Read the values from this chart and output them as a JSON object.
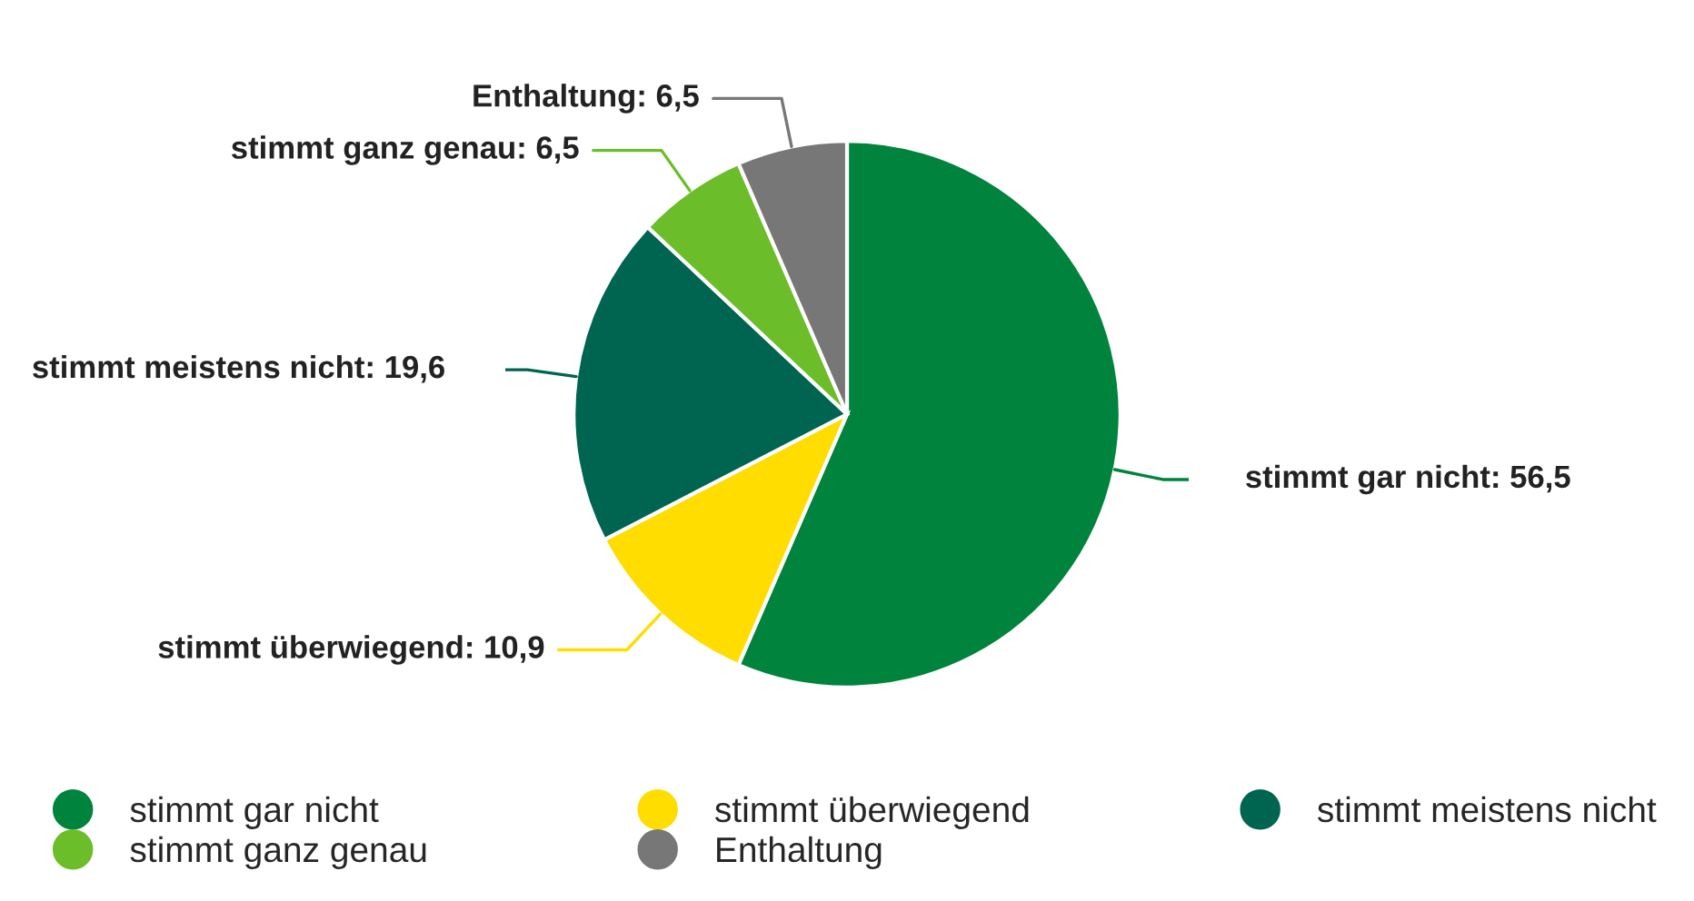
{
  "chart_data": {
    "type": "pie",
    "categories": [
      "stimmt gar nicht",
      "stimmt überwiegend",
      "stimmt meistens nicht",
      "stimmt ganz genau",
      "Enthaltung"
    ],
    "values": [
      56.5,
      10.9,
      19.6,
      6.5,
      6.5
    ],
    "value_labels": [
      "stimmt gar nicht: 56,5",
      "stimmt überwiegend: 10,9",
      "stimmt meistens nicht: 19,6",
      "stimmt ganz genau: 6,5",
      "Enthaltung: 6,5"
    ],
    "colors": [
      "#00843d",
      "#ffdd00",
      "#006550",
      "#6cbd2a",
      "#777777"
    ],
    "legend": "bottom"
  }
}
